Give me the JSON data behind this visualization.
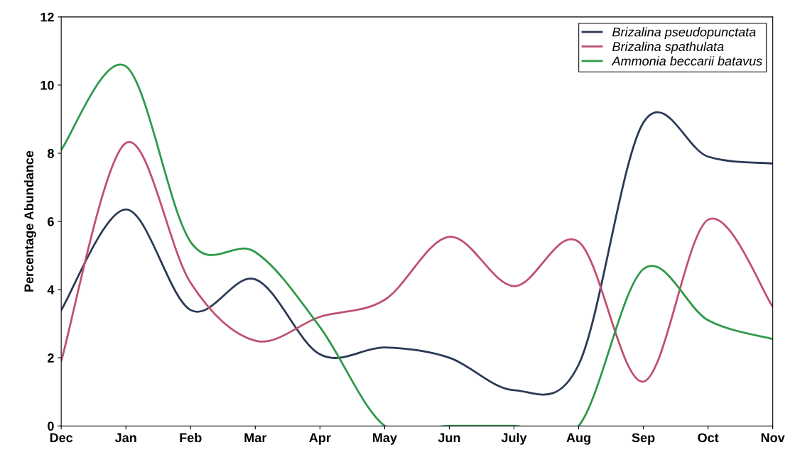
{
  "chart_data": {
    "type": "line",
    "ylabel": "Percentage Abundance",
    "categories": [
      "Dec",
      "Jan",
      "Feb",
      "Mar",
      "Apr",
      "May",
      "Jun",
      "July",
      "Aug",
      "Sep",
      "Oct",
      "Nov"
    ],
    "series": [
      {
        "name": "Brizalina pseudopunctata",
        "color": "#2b3a55",
        "values": [
          3.4,
          6.35,
          3.4,
          4.3,
          2.1,
          2.3,
          2.0,
          1.05,
          1.8,
          8.9,
          7.9,
          7.7
        ]
      },
      {
        "name": "Brizalina spathulata",
        "color": "#c05070",
        "values": [
          1.9,
          8.3,
          4.2,
          2.5,
          3.2,
          3.7,
          5.55,
          4.1,
          5.4,
          1.3,
          6.05,
          3.5
        ]
      },
      {
        "name": "Ammonia beccarii batavus",
        "color": "#2e9a4a",
        "values": [
          8.1,
          10.55,
          5.4,
          5.1,
          2.9,
          0,
          0,
          0,
          0,
          4.6,
          3.1,
          2.55
        ]
      }
    ],
    "ylim": [
      0,
      12
    ],
    "yticks": [
      0,
      2,
      4,
      6,
      8,
      10,
      12
    ],
    "grid": false,
    "legend": "top right",
    "marker": "none",
    "line_style": "solid"
  }
}
